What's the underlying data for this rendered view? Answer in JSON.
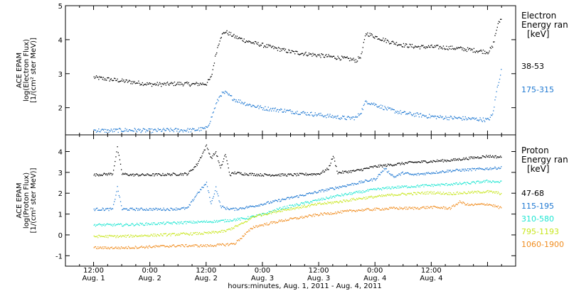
{
  "chart_data": [
    {
      "type": "scatter",
      "ylabel": [
        "ACE EPAM",
        "log(Electron Flux)",
        "[1/(cm² ster MeV)]"
      ],
      "ylim": [
        1.2,
        5.0
      ],
      "yticks": [
        2,
        3,
        4,
        5
      ],
      "legend": {
        "title": [
          "Electron",
          "Energy ran",
          "[keV]"
        ],
        "placement": "right"
      },
      "series": [
        {
          "name": "38-53",
          "color": "#000000",
          "x": [
            0,
            3,
            6,
            9,
            12,
            15,
            18,
            21,
            24,
            25,
            26,
            27,
            28,
            30,
            33,
            36,
            39,
            42,
            45,
            48,
            51,
            54,
            56,
            57,
            58,
            60,
            63,
            66,
            69,
            72,
            75,
            78,
            81,
            84,
            85,
            86,
            87
          ],
          "y": [
            2.9,
            2.85,
            2.8,
            2.75,
            2.7,
            2.7,
            2.72,
            2.7,
            2.72,
            2.9,
            3.6,
            4.1,
            4.25,
            4.1,
            3.95,
            3.85,
            3.75,
            3.65,
            3.6,
            3.55,
            3.5,
            3.45,
            3.4,
            3.55,
            4.2,
            4.1,
            3.95,
            3.85,
            3.8,
            3.8,
            3.78,
            3.75,
            3.7,
            3.65,
            3.8,
            4.4,
            4.7
          ]
        },
        {
          "name": "175-315",
          "color": "#1e78d2",
          "x": [
            0,
            3,
            6,
            9,
            12,
            15,
            18,
            21,
            24,
            25,
            26,
            27,
            28,
            30,
            33,
            36,
            39,
            42,
            45,
            48,
            51,
            54,
            56,
            57,
            58,
            60,
            63,
            66,
            69,
            72,
            75,
            78,
            81,
            84,
            85,
            86,
            87
          ],
          "y": [
            1.35,
            1.33,
            1.35,
            1.35,
            1.33,
            1.35,
            1.35,
            1.35,
            1.4,
            1.7,
            2.1,
            2.4,
            2.45,
            2.25,
            2.1,
            2.0,
            1.95,
            1.9,
            1.85,
            1.8,
            1.75,
            1.7,
            1.72,
            1.9,
            2.2,
            2.1,
            1.95,
            1.85,
            1.8,
            1.75,
            1.72,
            1.7,
            1.68,
            1.65,
            1.8,
            2.6,
            3.2
          ]
        }
      ]
    },
    {
      "type": "scatter",
      "ylabel": [
        "ACE EPAM",
        "log(Proton Flux)",
        "[1/(cm² ster MeV)]"
      ],
      "ylim": [
        -1.5,
        4.8
      ],
      "yticks": [
        -1,
        0,
        1,
        2,
        3,
        4
      ],
      "legend": {
        "title": [
          "Proton",
          "Energy ran",
          "[keV]"
        ],
        "placement": "right"
      },
      "series": [
        {
          "name": "47-68",
          "color": "#000000",
          "x": [
            0,
            4,
            5,
            6,
            8,
            12,
            16,
            20,
            22,
            24,
            25,
            26,
            27,
            28,
            29,
            30,
            32,
            36,
            42,
            48,
            50,
            51,
            52,
            54,
            56,
            60,
            64,
            68,
            72,
            76,
            80,
            84,
            87
          ],
          "y": [
            2.9,
            2.95,
            4.2,
            2.95,
            2.9,
            2.9,
            2.92,
            2.95,
            3.4,
            4.3,
            3.7,
            4.0,
            3.2,
            3.9,
            2.9,
            3.0,
            2.95,
            2.9,
            2.9,
            2.95,
            3.2,
            3.8,
            3.0,
            3.05,
            3.1,
            3.3,
            3.4,
            3.5,
            3.55,
            3.6,
            3.7,
            3.8,
            3.75
          ]
        },
        {
          "name": "115-195",
          "color": "#1e78d2",
          "x": [
            0,
            4,
            5,
            6,
            8,
            12,
            16,
            20,
            22,
            24,
            25,
            26,
            27,
            28,
            30,
            34,
            38,
            42,
            46,
            50,
            54,
            58,
            60,
            62,
            64,
            66,
            68,
            72,
            76,
            80,
            84,
            87
          ],
          "y": [
            1.25,
            1.25,
            2.3,
            1.25,
            1.25,
            1.25,
            1.25,
            1.3,
            2.0,
            2.5,
            1.5,
            2.3,
            1.4,
            1.3,
            1.25,
            1.4,
            1.6,
            1.8,
            2.0,
            2.2,
            2.4,
            2.6,
            2.7,
            3.2,
            2.8,
            3.0,
            2.9,
            3.0,
            3.1,
            3.15,
            3.2,
            3.25
          ]
        },
        {
          "name": "310-580",
          "color": "#1ee6d2",
          "x": [
            0,
            6,
            12,
            18,
            24,
            28,
            32,
            36,
            40,
            44,
            48,
            52,
            56,
            60,
            64,
            68,
            72,
            76,
            80,
            84,
            87
          ],
          "y": [
            0.5,
            0.5,
            0.55,
            0.6,
            0.65,
            0.7,
            0.8,
            1.0,
            1.3,
            1.5,
            1.7,
            1.9,
            2.05,
            2.2,
            2.3,
            2.35,
            2.4,
            2.45,
            2.5,
            2.6,
            2.55
          ]
        },
        {
          "name": "795-1193",
          "color": "#c8e61e",
          "x": [
            0,
            6,
            12,
            18,
            24,
            28,
            32,
            34,
            36,
            40,
            44,
            48,
            52,
            56,
            60,
            64,
            68,
            72,
            76,
            80,
            84,
            87
          ],
          "y": [
            -0.05,
            -0.05,
            0.0,
            0.05,
            0.1,
            0.2,
            0.6,
            0.9,
            1.0,
            1.2,
            1.35,
            1.5,
            1.6,
            1.75,
            1.85,
            1.95,
            2.0,
            2.05,
            2.0,
            2.05,
            2.1,
            2.0
          ]
        },
        {
          "name": "1060-1900",
          "color": "#f08c1e",
          "x": [
            0,
            6,
            12,
            18,
            24,
            28,
            30,
            32,
            34,
            36,
            40,
            44,
            48,
            52,
            56,
            60,
            64,
            68,
            72,
            76,
            78,
            80,
            84,
            87
          ],
          "y": [
            -0.6,
            -0.6,
            -0.55,
            -0.5,
            -0.5,
            -0.45,
            -0.4,
            0.0,
            0.4,
            0.5,
            0.7,
            0.85,
            1.0,
            1.1,
            1.2,
            1.25,
            1.3,
            1.3,
            1.35,
            1.3,
            1.6,
            1.45,
            1.5,
            1.3
          ]
        }
      ]
    }
  ],
  "x_axis": {
    "range_hours": [
      -6,
      90
    ],
    "ticks": [
      {
        "h": 0,
        "time": "12:00",
        "date": "Aug. 1"
      },
      {
        "h": 12,
        "time": "0:00",
        "date": "Aug. 2"
      },
      {
        "h": 24,
        "time": "12:00",
        "date": "Aug. 2"
      },
      {
        "h": 36,
        "time": "0:00",
        "date": "Aug. 3"
      },
      {
        "h": 48,
        "time": "12:00",
        "date": "Aug. 3"
      },
      {
        "h": 60,
        "time": "0:00",
        "date": "Aug. 4"
      },
      {
        "h": 72,
        "time": "12:00",
        "date": "Aug. 4"
      }
    ],
    "label": "hours:minutes, Aug.  1, 2011 - Aug.  4, 2011"
  }
}
